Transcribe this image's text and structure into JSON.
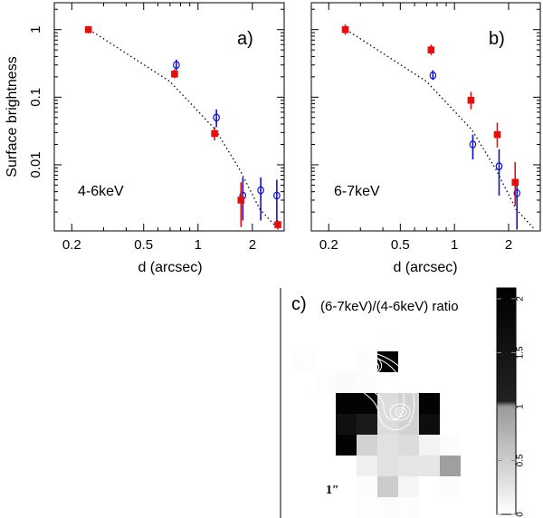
{
  "chart_data": [
    {
      "type": "scatter",
      "panel_label": "a)",
      "band_label": "4-6keV",
      "xlabel": "d (arcsec)",
      "ylabel": "Surface brightness",
      "xscale": "log",
      "yscale": "log",
      "xlim": [
        0.16,
        3.0
      ],
      "ylim": [
        0.00105,
        2.5
      ],
      "xticks": [
        0.2,
        0.5,
        1,
        2
      ],
      "xtick_labels": [
        "0.2",
        "0.5",
        "1",
        "2"
      ],
      "yticks": [
        1,
        0.1,
        0.01
      ],
      "ytick_labels": [
        "1",
        "0.1",
        "0.01"
      ],
      "series": [
        {
          "name": "model",
          "style": "dotted",
          "x": [
            0.25,
            0.7,
            1.25,
            1.7,
            2.2,
            2.8
          ],
          "y": [
            1.0,
            0.17,
            0.033,
            0.0085,
            0.0022,
            0.0011
          ]
        },
        {
          "name": "blue-open",
          "color": "#1010cc",
          "x": [
            0.75,
            1.25,
            1.75,
            2.2,
            2.7
          ],
          "y": [
            0.3,
            0.05,
            0.0035,
            0.0042,
            0.0035
          ],
          "err_lo": [
            0.25,
            0.036,
            0.0015,
            0.0015,
            0.0014
          ],
          "err_hi": [
            0.36,
            0.066,
            0.0065,
            0.0065,
            0.006
          ]
        },
        {
          "name": "red-filled",
          "color": "#e01010",
          "x": [
            0.25,
            0.75,
            1.25,
            1.75,
            2.8
          ],
          "y": [
            1.0,
            0.22,
            0.029,
            0.003,
            0.0013
          ],
          "err_lo": [
            0.88,
            0.19,
            0.023,
            0.0012,
            0.0011
          ],
          "err_hi": [
            1.13,
            0.26,
            0.036,
            0.0055,
            0.0015
          ]
        }
      ]
    },
    {
      "type": "scatter",
      "panel_label": "b)",
      "band_label": "6-7keV",
      "xlabel": "d (arcsec)",
      "xscale": "log",
      "yscale": "log",
      "xlim": [
        0.16,
        3.0
      ],
      "ylim": [
        0.00105,
        2.5
      ],
      "xticks": [
        0.2,
        0.5,
        1,
        2
      ],
      "xtick_labels": [
        "0.2",
        "0.5",
        "1",
        "2"
      ],
      "series": [
        {
          "name": "model",
          "style": "dotted",
          "x": [
            0.25,
            0.7,
            1.25,
            1.7,
            2.2,
            2.8
          ],
          "y": [
            1.0,
            0.17,
            0.033,
            0.0085,
            0.0022,
            0.0011
          ]
        },
        {
          "name": "blue-open",
          "color": "#1010cc",
          "x": [
            0.75,
            1.25,
            1.75,
            2.2
          ],
          "y": [
            0.21,
            0.02,
            0.0095,
            0.0038
          ],
          "err_lo": [
            0.18,
            0.012,
            0.0035,
            0.0011
          ],
          "err_hi": [
            0.25,
            0.028,
            0.017,
            0.0055
          ]
        },
        {
          "name": "red-filled",
          "color": "#e01010",
          "x": [
            0.25,
            0.75,
            1.25,
            1.75,
            2.2
          ],
          "y": [
            1.0,
            0.5,
            0.09,
            0.028,
            0.0055
          ],
          "err_lo": [
            0.84,
            0.42,
            0.066,
            0.018,
            0.0025
          ],
          "err_hi": [
            1.2,
            0.6,
            0.12,
            0.042,
            0.011
          ]
        }
      ]
    },
    {
      "type": "heatmap",
      "panel_label": "c)",
      "title": "(6-7keV)/(4-6keV) ratio",
      "scale_label": "1″",
      "colorbar": {
        "min": 0,
        "max": 2.1,
        "ticks": [
          0,
          0.5,
          1,
          1.5,
          2
        ],
        "tick_labels": [
          "0",
          "0.5",
          "1",
          "1.5",
          "2"
        ]
      },
      "grid": [
        [
          null,
          null,
          null,
          null,
          0.02,
          null,
          null,
          null,
          null
        ],
        [
          0.02,
          null,
          null,
          0.03,
          2.0,
          null,
          null,
          null,
          null
        ],
        [
          null,
          0.02,
          0.05,
          0.03,
          null,
          null,
          null,
          null,
          null
        ],
        [
          null,
          null,
          2.0,
          2.0,
          0.35,
          0.45,
          2.0,
          null,
          null
        ],
        [
          null,
          null,
          1.6,
          1.3,
          0.35,
          0.45,
          1.7,
          null,
          null
        ],
        [
          null,
          null,
          2.0,
          0.45,
          0.3,
          0.35,
          0.12,
          0.03,
          null
        ],
        [
          null,
          null,
          null,
          0.15,
          0.3,
          0.25,
          0.25,
          0.95,
          null
        ],
        [
          null,
          null,
          null,
          0.03,
          0.5,
          0.1,
          null,
          0.03,
          null
        ],
        [
          null,
          null,
          null,
          0.02,
          0.03,
          0.02,
          null,
          null,
          null
        ],
        [
          null,
          null,
          null,
          null,
          0.55,
          null,
          null,
          null,
          null
        ]
      ]
    }
  ]
}
